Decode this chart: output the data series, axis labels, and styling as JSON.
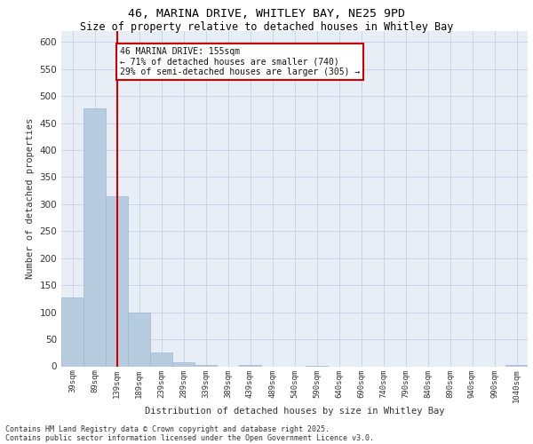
{
  "title1": "46, MARINA DRIVE, WHITLEY BAY, NE25 9PD",
  "title2": "Size of property relative to detached houses in Whitley Bay",
  "xlabel": "Distribution of detached houses by size in Whitley Bay",
  "ylabel": "Number of detached properties",
  "bar_labels": [
    "39sqm",
    "89sqm",
    "139sqm",
    "189sqm",
    "239sqm",
    "289sqm",
    "339sqm",
    "389sqm",
    "439sqm",
    "489sqm",
    "540sqm",
    "590sqm",
    "640sqm",
    "690sqm",
    "740sqm",
    "790sqm",
    "840sqm",
    "890sqm",
    "940sqm",
    "990sqm",
    "1040sqm"
  ],
  "bar_values": [
    128,
    477,
    314,
    99,
    25,
    8,
    2,
    0,
    2,
    0,
    0,
    1,
    0,
    0,
    0,
    0,
    0,
    0,
    0,
    0,
    2
  ],
  "bar_color": "#b8ccdf",
  "bar_edge_color": "#9ab8d5",
  "grid_color": "#c8d4e8",
  "background_color": "#e8eef5",
  "vline_x_idx": 2,
  "vline_color": "#cc0000",
  "annotation_text": "46 MARINA DRIVE: 155sqm\n← 71% of detached houses are smaller (740)\n29% of semi-detached houses are larger (305) →",
  "annotation_box_color": "#ffffff",
  "annotation_box_edge": "#cc0000",
  "ylim": [
    0,
    620
  ],
  "yticks": [
    0,
    50,
    100,
    150,
    200,
    250,
    300,
    350,
    400,
    450,
    500,
    550,
    600
  ],
  "footnote1": "Contains HM Land Registry data © Crown copyright and database right 2025.",
  "footnote2": "Contains public sector information licensed under the Open Government Licence v3.0."
}
